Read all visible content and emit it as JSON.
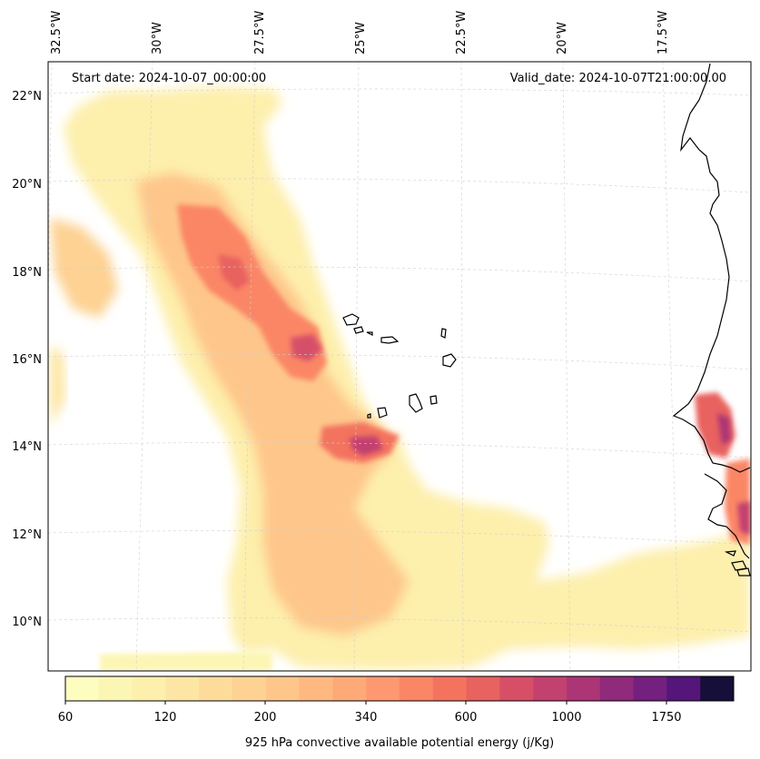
{
  "header": {
    "start_date": "Start date: 2024-10-07_00:00:00",
    "valid_date": "Valid_date: 2024-10-07T21:00:00.00"
  },
  "longitude_labels": [
    "32.5°W",
    "30°W",
    "27.5°W",
    "25°W",
    "22.5°W",
    "20°W",
    "17.5°W"
  ],
  "latitude_labels": [
    "22°N",
    "20°N",
    "18°N",
    "16°N",
    "14°N",
    "12°N",
    "10°N"
  ],
  "colorbar": {
    "label": "925 hPa convective available potential energy (j/Kg)",
    "tick_labels": [
      "60",
      "120",
      "200",
      "340",
      "600",
      "1000",
      "1750"
    ],
    "colors": [
      "#fcfdbf",
      "#fcf6b5",
      "#fdefac",
      "#fde6a3",
      "#fddc9b",
      "#fdd293",
      "#fec68a",
      "#feb880",
      "#fea978",
      "#fe9870",
      "#fa8666",
      "#f3735f",
      "#e8625f",
      "#d64f67",
      "#c2416f",
      "#ab3575",
      "#902a7b",
      "#74207e",
      "#541679",
      "#160f3a"
    ]
  },
  "map": {
    "extent": {
      "lon_min": -32.5,
      "lon_max": -15.7,
      "lat_min": 8.9,
      "lat_max": 22.8
    },
    "grid": true,
    "gridlines_lon": [
      -32.5,
      -30,
      -27.5,
      -25,
      -22.5,
      -20,
      -17.5
    ],
    "gridlines_lat": [
      22,
      20,
      18,
      16,
      14,
      12,
      10
    ]
  }
}
